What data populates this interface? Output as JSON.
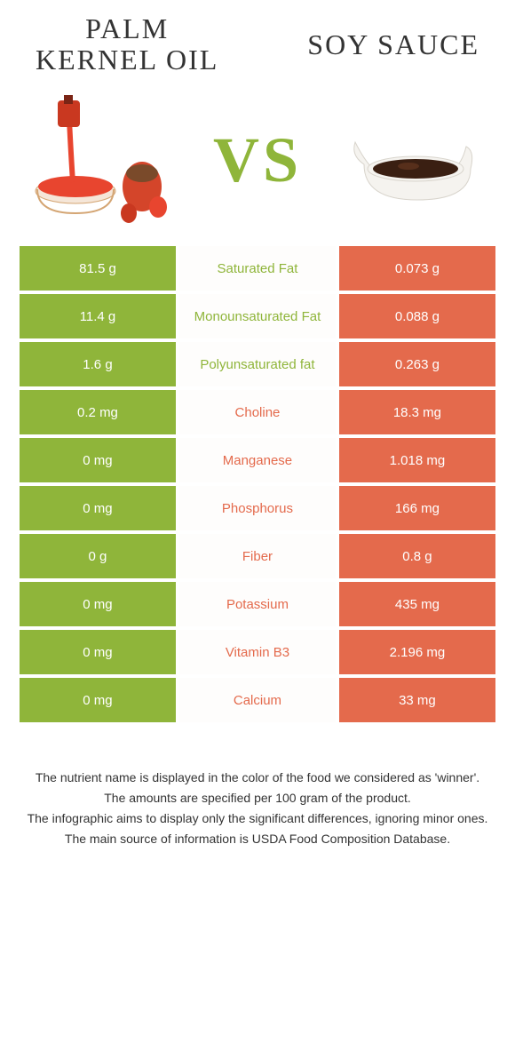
{
  "colors": {
    "left_bg": "#8fb53a",
    "right_bg": "#e46a4c",
    "mid_bg": "#fefdfc",
    "left_text": "#8fb53a",
    "right_text": "#e46a4c"
  },
  "title_left": "PALM\nKERNEL OIL",
  "title_right": "SOY SAUCE",
  "vs_label": "VS",
  "rows": [
    {
      "left": "81.5 g",
      "mid": "Saturated Fat",
      "right": "0.073 g",
      "winner": "left"
    },
    {
      "left": "11.4 g",
      "mid": "Monounsaturated Fat",
      "right": "0.088 g",
      "winner": "left"
    },
    {
      "left": "1.6 g",
      "mid": "Polyunsaturated fat",
      "right": "0.263 g",
      "winner": "left"
    },
    {
      "left": "0.2 mg",
      "mid": "Choline",
      "right": "18.3 mg",
      "winner": "right"
    },
    {
      "left": "0 mg",
      "mid": "Manganese",
      "right": "1.018 mg",
      "winner": "right"
    },
    {
      "left": "0 mg",
      "mid": "Phosphorus",
      "right": "166 mg",
      "winner": "right"
    },
    {
      "left": "0 g",
      "mid": "Fiber",
      "right": "0.8 g",
      "winner": "right"
    },
    {
      "left": "0 mg",
      "mid": "Potassium",
      "right": "435 mg",
      "winner": "right"
    },
    {
      "left": "0 mg",
      "mid": "Vitamin B3",
      "right": "2.196 mg",
      "winner": "right"
    },
    {
      "left": "0 mg",
      "mid": "Calcium",
      "right": "33 mg",
      "winner": "right"
    }
  ],
  "footnotes": [
    "The nutrient name is displayed in the color of the food we considered as 'winner'.",
    "The amounts are specified per 100 gram of the product.",
    "The infographic aims to display only the significant differences, ignoring minor ones.",
    "The main source of information is USDA Food Composition Database."
  ]
}
